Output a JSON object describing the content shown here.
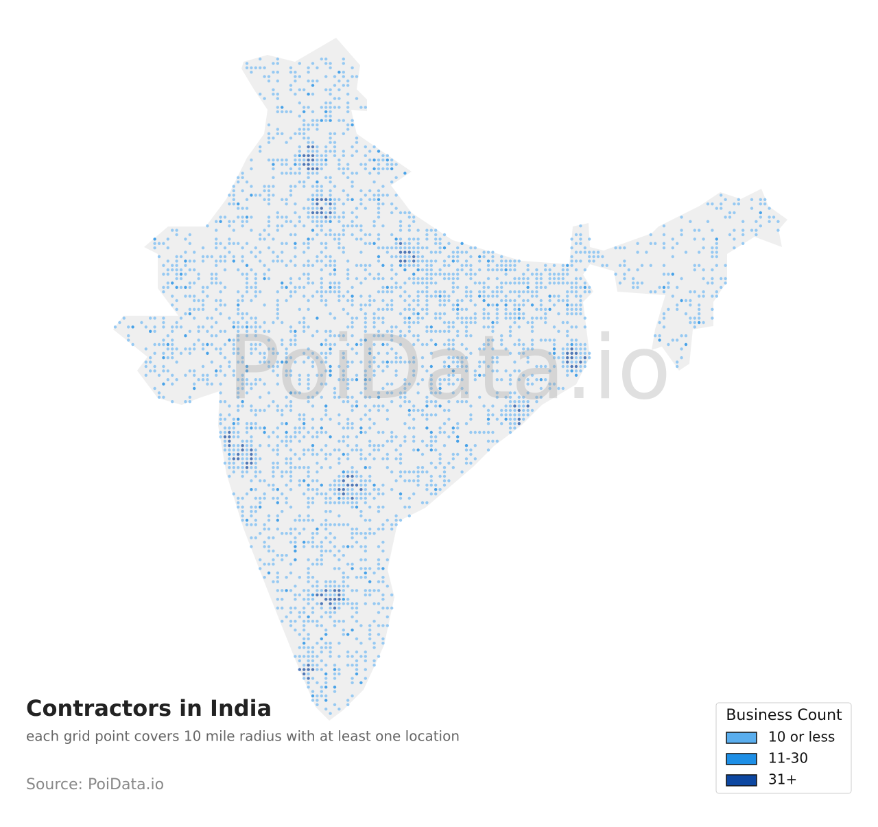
{
  "title": "Contractors in India",
  "subtitle": "each grid point covers 10 mile radius with at least one location",
  "source": "Source: PoiData.io",
  "watermark": "PoiData.io",
  "legend": {
    "title": "Business Count",
    "items": [
      {
        "label": "10 or less",
        "color": "#5aaeee"
      },
      {
        "label": "11-30",
        "color": "#1e8fe6"
      },
      {
        "label": "31+",
        "color": "#0d47a1"
      }
    ]
  }
}
